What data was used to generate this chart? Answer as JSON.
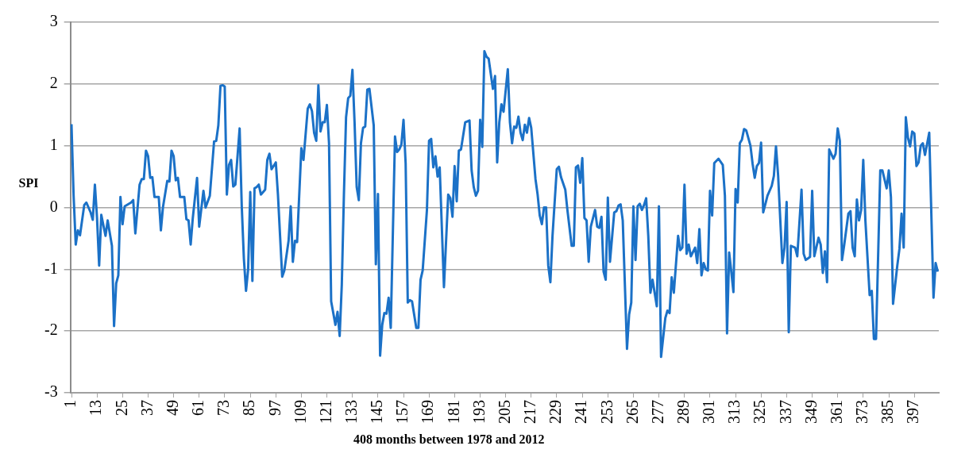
{
  "chart_data": {
    "type": "line",
    "xlabel": "408 months between 1978 and 2012",
    "ylabel": "SPI",
    "xlim": [
      0.5,
      408.5
    ],
    "xticks": [
      1,
      13,
      25,
      37,
      49,
      61,
      73,
      85,
      97,
      109,
      121,
      133,
      145,
      157,
      169,
      181,
      193,
      205,
      217,
      229,
      241,
      253,
      265,
      277,
      289,
      301,
      313,
      325,
      337,
      349,
      361,
      373,
      385,
      397
    ],
    "ylim": [
      -3,
      3
    ],
    "yticks": [
      -3,
      -2,
      -1,
      0,
      1,
      2,
      3
    ],
    "grid": "y",
    "legend": false,
    "marker": "none",
    "line_style": "solid",
    "series": [
      {
        "color": "#1b71c7",
        "x": [
          1,
          2,
          3,
          4,
          5,
          7,
          8,
          10,
          11,
          12,
          13,
          14,
          15,
          17,
          18,
          20,
          21,
          22,
          23,
          24,
          25,
          26,
          29,
          30,
          31,
          33,
          34,
          35,
          36,
          37,
          38,
          39,
          40,
          42,
          43,
          44,
          46,
          47,
          48,
          49,
          50,
          51,
          52,
          54,
          55,
          56,
          57,
          58,
          60,
          61,
          63,
          64,
          66,
          68,
          69,
          70,
          71,
          72,
          73,
          74,
          75,
          76,
          77,
          78,
          80,
          81,
          82,
          83,
          84,
          85,
          86,
          87,
          88,
          89,
          90,
          92,
          93,
          94,
          95,
          97,
          98,
          99,
          100,
          101,
          103,
          104,
          105,
          106,
          107,
          109,
          110,
          112,
          113,
          114,
          115,
          116,
          117,
          118,
          119,
          120,
          121,
          122,
          123,
          125,
          126,
          127,
          128,
          129,
          130,
          131,
          132,
          133,
          134,
          135,
          136,
          137,
          138,
          139,
          140,
          141,
          143,
          144,
          145,
          146,
          147,
          148,
          149,
          150,
          151,
          153,
          154,
          155,
          156,
          157,
          158,
          159,
          160,
          161,
          163,
          164,
          165,
          166,
          168,
          169,
          170,
          171,
          172,
          173,
          174,
          176,
          178,
          179,
          180,
          181,
          182,
          183,
          184,
          186,
          188,
          189,
          190,
          191,
          192,
          193,
          194,
          195,
          196,
          197,
          199,
          200,
          201,
          202,
          203,
          204,
          206,
          207,
          208,
          209,
          210,
          211,
          212,
          213,
          214,
          215,
          216,
          217,
          219,
          220,
          221,
          222,
          223,
          224,
          225,
          226,
          227,
          229,
          230,
          231,
          233,
          234,
          236,
          237,
          238,
          239,
          240,
          241,
          242,
          243,
          244,
          245,
          247,
          248,
          249,
          250,
          251,
          252,
          253,
          254,
          256,
          257,
          258,
          259,
          260,
          262,
          263,
          264,
          265,
          266,
          267,
          268,
          269,
          270,
          271,
          272,
          273,
          274,
          276,
          277,
          278,
          280,
          281,
          282,
          283,
          284,
          286,
          287,
          288,
          289,
          290,
          291,
          292,
          294,
          295,
          296,
          297,
          298,
          299,
          300,
          301,
          302,
          303,
          305,
          307,
          308,
          309,
          310,
          311,
          312,
          313,
          314,
          315,
          316,
          317,
          318,
          320,
          321,
          322,
          323,
          324,
          325,
          326,
          328,
          330,
          331,
          332,
          333,
          335,
          336,
          337,
          338,
          339,
          341,
          342,
          344,
          345,
          346,
          348,
          349,
          350,
          352,
          353,
          354,
          355,
          356,
          357,
          359,
          360,
          361,
          362,
          363,
          364,
          366,
          367,
          368,
          369,
          370,
          371,
          372,
          373,
          374,
          376,
          377,
          378,
          379,
          381,
          382,
          384,
          385,
          386,
          387,
          389,
          390,
          391,
          392,
          393,
          394,
          395,
          396,
          397,
          398,
          399,
          400,
          401,
          402,
          404,
          406,
          407,
          408
        ],
        "values": [
          1.35,
          0.19,
          -0.6,
          -0.37,
          -0.45,
          0.04,
          0.08,
          -0.08,
          -0.2,
          0.37,
          -0.17,
          -0.94,
          -0.12,
          -0.46,
          -0.21,
          -0.62,
          -1.92,
          -1.23,
          -1.1,
          0.17,
          -0.27,
          0.02,
          0.08,
          0.12,
          -0.42,
          0.37,
          0.46,
          0.46,
          0.92,
          0.83,
          0.48,
          0.49,
          0.17,
          0.17,
          -0.37,
          0.01,
          0.43,
          0.42,
          0.92,
          0.83,
          0.44,
          0.48,
          0.17,
          0.17,
          -0.19,
          -0.21,
          -0.6,
          -0.17,
          0.48,
          -0.31,
          0.27,
          0,
          0.19,
          1.07,
          1.08,
          1.33,
          1.97,
          1.98,
          1.96,
          0.21,
          0.69,
          0.77,
          0.34,
          0.37,
          1.28,
          0.02,
          -0.83,
          -1.35,
          -1,
          0.25,
          -1.19,
          0.31,
          0.33,
          0.37,
          0.21,
          0.29,
          0.77,
          0.87,
          0.62,
          0.73,
          0.21,
          -0.46,
          -1.12,
          -1.02,
          -0.54,
          0.02,
          -0.88,
          -0.54,
          -0.56,
          0.96,
          0.77,
          1.6,
          1.67,
          1.56,
          1.21,
          1.08,
          1.98,
          1.23,
          1.38,
          1.38,
          1.66,
          1.04,
          -1.52,
          -1.9,
          -1.69,
          -2.08,
          -1.25,
          0.21,
          1.46,
          1.77,
          1.81,
          2.23,
          1.38,
          0.33,
          0.12,
          1.04,
          1.29,
          1.31,
          1.91,
          1.92,
          1.33,
          -0.92,
          0.22,
          -2.4,
          -1.9,
          -1.71,
          -1.72,
          -1.46,
          -1.95,
          1.15,
          0.9,
          0.94,
          1.02,
          1.42,
          0.71,
          -1.54,
          -1.5,
          -1.52,
          -1.95,
          -1.95,
          -1.17,
          -1.02,
          -0.04,
          1.08,
          1.11,
          0.65,
          0.83,
          0.5,
          0.65,
          -1.29,
          0.21,
          0.15,
          -0.15,
          0.67,
          0.1,
          0.92,
          0.94,
          1.38,
          1.41,
          0.6,
          0.33,
          0.19,
          0.27,
          1.42,
          0.98,
          2.53,
          2.44,
          2.41,
          1.92,
          2.13,
          0.73,
          1.38,
          1.67,
          1.55,
          2.24,
          1.38,
          1.04,
          1.31,
          1.29,
          1.47,
          1.21,
          1.09,
          1.34,
          1.21,
          1.45,
          1.29,
          0.46,
          0.21,
          -0.13,
          -0.27,
          0,
          0,
          -0.94,
          -1.21,
          -0.46,
          0.62,
          0.66,
          0.49,
          0.29,
          -0.04,
          -0.62,
          -0.62,
          0.65,
          0.68,
          0.4,
          0.8,
          -0.17,
          -0.21,
          -0.88,
          -0.31,
          -0.04,
          -0.31,
          -0.33,
          -0.15,
          -1.04,
          -1.17,
          0.16,
          -0.88,
          -0.08,
          -0.06,
          0.03,
          0.05,
          -0.21,
          -2.29,
          -1.73,
          -1.54,
          0.02,
          -0.85,
          0.02,
          0.06,
          -0.04,
          0.04,
          0.15,
          -0.46,
          -1.38,
          -1.17,
          -1.6,
          0.02,
          -2.42,
          -1.79,
          -1.67,
          -1.71,
          -1.13,
          -1.38,
          -0.46,
          -0.69,
          -0.65,
          0.37,
          -0.75,
          -0.6,
          -0.79,
          -0.65,
          -0.9,
          -0.35,
          -1.1,
          -0.9,
          -1,
          -1.02,
          0.27,
          -0.13,
          0.72,
          0.79,
          0.69,
          0.19,
          -2.04,
          -0.73,
          -1.04,
          -1.37,
          0.3,
          0.08,
          1.04,
          1.1,
          1.27,
          1.25,
          1,
          0.71,
          0.48,
          0.67,
          0.72,
          1.05,
          -0.08,
          0.19,
          0.35,
          0.51,
          0.99,
          0.52,
          -0.9,
          -0.65,
          0.09,
          -2.02,
          -0.62,
          -0.65,
          -0.79,
          0.29,
          -0.75,
          -0.85,
          -0.8,
          0.27,
          -0.79,
          -0.49,
          -0.6,
          -1.06,
          -0.71,
          -1.21,
          0.94,
          0.79,
          0.87,
          1.28,
          1.08,
          -0.85,
          -0.62,
          -0.1,
          -0.06,
          -0.65,
          -0.79,
          0.13,
          -0.21,
          -0.04,
          0.77,
          -0.21,
          -1.42,
          -1.35,
          -2.13,
          -2.13,
          0.6,
          0.6,
          0.31,
          0.6,
          0.17,
          -1.56,
          -0.94,
          -0.67,
          -0.1,
          -0.65,
          1.46,
          1.13,
          0.99,
          1.23,
          1.2,
          0.67,
          0.73,
          1,
          1.04,
          0.85,
          1.21,
          -1.46,
          -0.9,
          -1.04
        ]
      }
    ]
  }
}
